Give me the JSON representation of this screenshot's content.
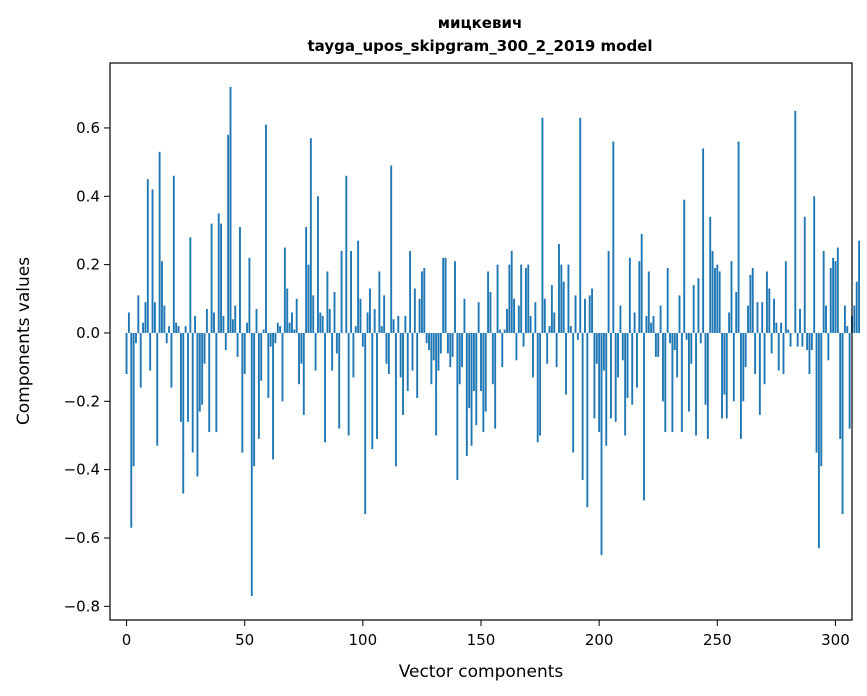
{
  "chart_data": {
    "type": "bar",
    "title": "мицкевич",
    "subtitle": "tayga_upos_skipgram_300_2_2019 model",
    "xlabel": "Vector components",
    "ylabel": "Components values",
    "xlim": [
      -7,
      307
    ],
    "ylim": [
      -0.84,
      0.79
    ],
    "xticks": [
      0,
      50,
      100,
      150,
      200,
      250,
      300
    ],
    "yticks": [
      -0.8,
      -0.6,
      -0.4,
      -0.2,
      0.0,
      0.2,
      0.4,
      0.6
    ],
    "ytick_labels": [
      "−0.8",
      "−0.6",
      "−0.4",
      "−0.2",
      "0.0",
      "0.2",
      "0.4",
      "0.6"
    ],
    "bar_color": "#1f77b4",
    "grid": false,
    "values": [
      -0.12,
      0.06,
      -0.57,
      -0.39,
      -0.03,
      0.11,
      -0.16,
      0.03,
      0.09,
      0.45,
      -0.11,
      0.42,
      0.09,
      -0.33,
      0.53,
      0.21,
      0.08,
      -0.03,
      0.02,
      -0.16,
      0.46,
      0.03,
      0.02,
      -0.26,
      -0.47,
      0.02,
      -0.26,
      0.28,
      -0.35,
      0.05,
      -0.42,
      -0.23,
      -0.21,
      -0.09,
      0.07,
      -0.29,
      0.32,
      0.06,
      -0.29,
      0.35,
      0.32,
      0.05,
      -0.05,
      0.58,
      0.72,
      0.04,
      0.08,
      -0.07,
      0.31,
      -0.35,
      -0.12,
      0.03,
      0.22,
      -0.77,
      -0.39,
      0.07,
      -0.31,
      -0.14,
      0.01,
      0.61,
      -0.19,
      -0.04,
      -0.37,
      -0.03,
      0.03,
      0.02,
      -0.2,
      0.25,
      0.13,
      0.03,
      0.06,
      0.01,
      0.1,
      -0.15,
      -0.09,
      -0.24,
      0.31,
      0.2,
      0.57,
      0.11,
      -0.11,
      0.4,
      0.06,
      0.05,
      -0.32,
      0.18,
      0.07,
      -0.11,
      0.12,
      -0.06,
      -0.28,
      0.24,
      0.0,
      0.46,
      -0.3,
      0.24,
      -0.13,
      0.02,
      0.27,
      0.1,
      -0.04,
      -0.53,
      0.06,
      0.13,
      -0.34,
      0.07,
      -0.31,
      0.18,
      0.02,
      0.11,
      -0.09,
      -0.12,
      0.49,
      0.04,
      -0.39,
      0.05,
      -0.13,
      -0.24,
      0.05,
      -0.17,
      0.24,
      -0.11,
      0.13,
      -0.19,
      0.1,
      0.18,
      0.19,
      -0.03,
      -0.05,
      -0.15,
      -0.08,
      -0.3,
      -0.11,
      -0.06,
      0.22,
      0.22,
      -0.06,
      -0.1,
      -0.07,
      0.21,
      -0.43,
      -0.15,
      -0.1,
      0.1,
      -0.36,
      -0.22,
      -0.33,
      -0.17,
      -0.27,
      0.09,
      -0.17,
      -0.29,
      -0.23,
      0.18,
      0.12,
      -0.15,
      -0.28,
      0.2,
      0.01,
      -0.1,
      0.01,
      0.07,
      0.2,
      0.24,
      0.1,
      -0.08,
      0.08,
      0.2,
      -0.04,
      0.19,
      0.2,
      0.05,
      -0.13,
      0.09,
      -0.32,
      -0.3,
      0.63,
      0.1,
      -0.09,
      0.02,
      0.14,
      0.06,
      -0.1,
      0.26,
      0.2,
      0.15,
      -0.18,
      0.2,
      0.02,
      -0.35,
      0.11,
      -0.02,
      0.63,
      -0.43,
      0.1,
      -0.51,
      0.11,
      0.13,
      -0.25,
      -0.09,
      -0.29,
      -0.65,
      -0.11,
      -0.33,
      0.24,
      -0.25,
      0.56,
      -0.26,
      -0.13,
      0.08,
      -0.08,
      -0.3,
      -0.19,
      0.22,
      -0.21,
      0.06,
      -0.16,
      0.21,
      0.29,
      -0.49,
      0.05,
      0.18,
      0.03,
      0.05,
      -0.07,
      -0.07,
      0.08,
      -0.2,
      -0.29,
      0.19,
      -0.03,
      -0.29,
      -0.05,
      -0.13,
      0.11,
      -0.29,
      0.39,
      -0.02,
      -0.23,
      -0.09,
      0.14,
      -0.3,
      0.16,
      -0.03,
      0.54,
      -0.21,
      -0.31,
      0.34,
      0.24,
      0.19,
      0.2,
      0.18,
      -0.25,
      -0.18,
      -0.25,
      0.06,
      0.21,
      -0.2,
      0.12,
      0.56,
      -0.31,
      -0.2,
      -0.1,
      0.08,
      0.17,
      0.19,
      -0.12,
      0.09,
      -0.24,
      0.09,
      -0.15,
      0.18,
      0.13,
      -0.06,
      0.1,
      0.03,
      -0.11,
      0.03,
      -0.12,
      0.21,
      0.01,
      -0.04,
      0.0,
      0.65,
      -0.04,
      0.07,
      -0.04,
      0.34,
      -0.05,
      -0.12,
      -0.05,
      0.4,
      -0.35,
      -0.63,
      -0.39,
      0.24,
      0.08,
      -0.08,
      0.19,
      0.22,
      0.21,
      0.25,
      -0.31,
      -0.53,
      0.08,
      0.02,
      -0.28,
      0.05,
      0.08,
      0.15,
      0.27
    ]
  }
}
